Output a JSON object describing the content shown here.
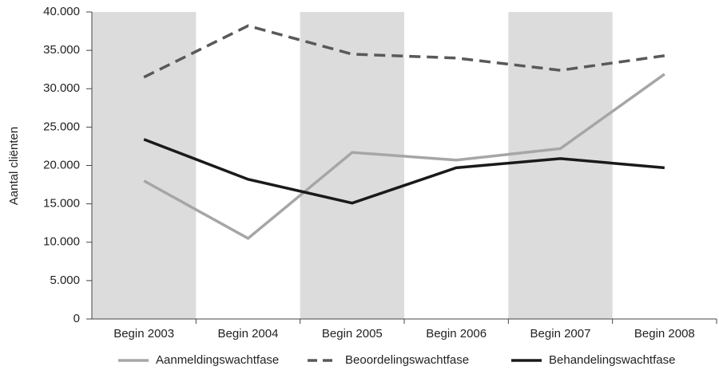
{
  "chart_data": {
    "type": "line",
    "y_label": "Aantal cliënten",
    "categories": [
      "Begin 2003",
      "Begin 2004",
      "Begin 2005",
      "Begin 2006",
      "Begin 2007",
      "Begin 2008"
    ],
    "series": [
      {
        "name": "Aanmeldingswachtfase",
        "color": "#a6a6a6",
        "dash": false,
        "values": [
          18000,
          10500,
          21700,
          20700,
          22200,
          31900
        ]
      },
      {
        "name": "Beoordelingswachtfase",
        "color": "#595959",
        "dash": true,
        "values": [
          31500,
          38200,
          34500,
          34000,
          32400,
          34300
        ]
      },
      {
        "name": "Behandelingswachtfase",
        "color": "#1a1a1a",
        "dash": false,
        "values": [
          23400,
          18200,
          15100,
          19700,
          20900,
          19700
        ]
      }
    ],
    "ylim": [
      0,
      40000
    ],
    "yticks": [
      {
        "value": 0,
        "label": "0"
      },
      {
        "value": 5000,
        "label": "5.000"
      },
      {
        "value": 10000,
        "label": "10.000"
      },
      {
        "value": 15000,
        "label": "15.000"
      },
      {
        "value": 20000,
        "label": "20.000"
      },
      {
        "value": 25000,
        "label": "25.000"
      },
      {
        "value": 30000,
        "label": "30.000"
      },
      {
        "value": 35000,
        "label": "35.000"
      },
      {
        "value": 40000,
        "label": "40.000"
      }
    ],
    "grid": false,
    "legend": "bottom"
  }
}
